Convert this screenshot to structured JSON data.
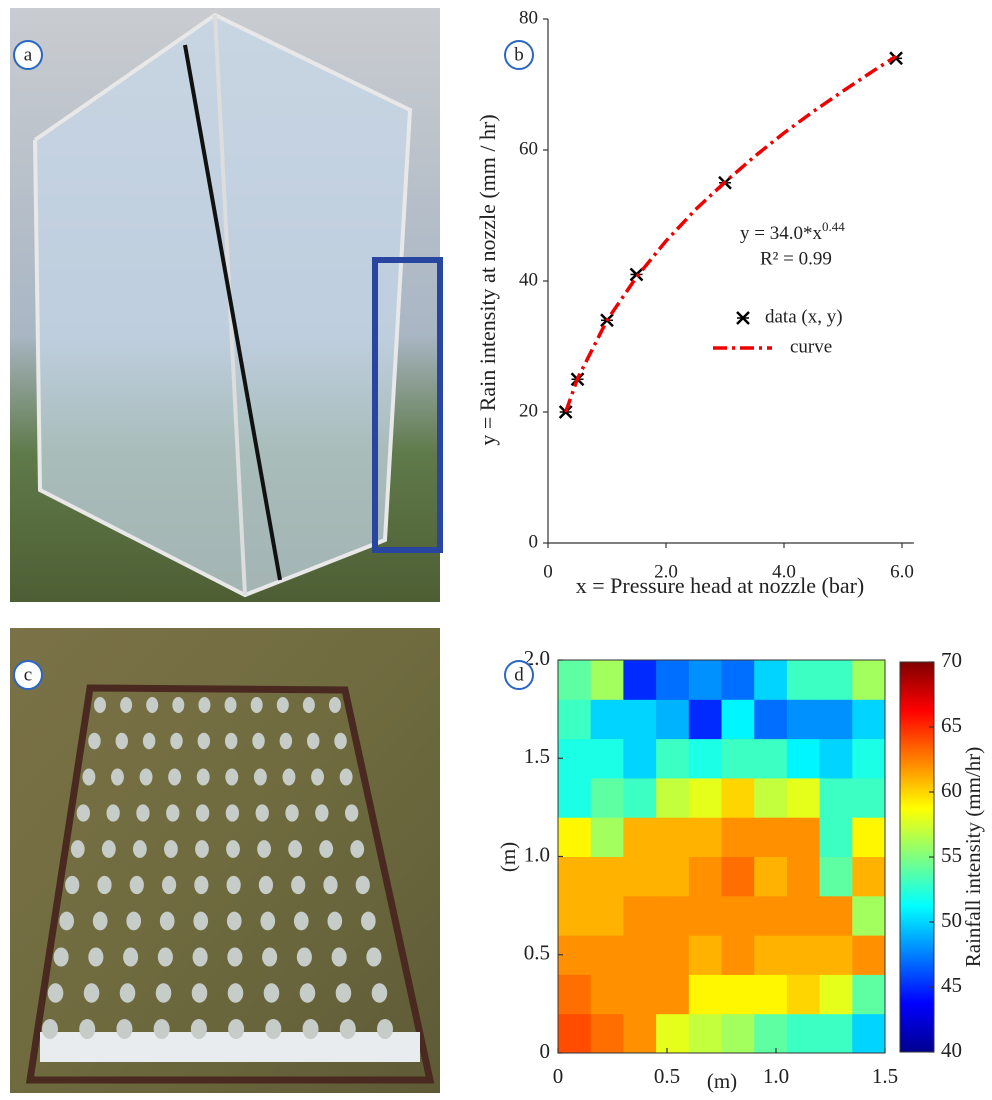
{
  "panel_labels": [
    "a",
    "b",
    "c",
    "d"
  ],
  "chart_data": [
    {
      "type": "scatter",
      "x_label": "x = Pressure head at nozzle (bar)",
      "y_label": "y = Rain intensity at nozzle (mm / hr)",
      "equation": "y = 34.0*x",
      "equation_exponent": "0.44",
      "r_squared": "R² = 0.99",
      "xlim": [
        0,
        6.2
      ],
      "xticks": [
        0,
        {
          "value": 2,
          "label": "2.0"
        },
        {
          "value": 4,
          "label": "4.0"
        },
        {
          "value": 6,
          "label": "6.0"
        }
      ],
      "ylim": [
        0,
        80
      ],
      "yticks": [
        0,
        20,
        40,
        60,
        80
      ],
      "series": [
        {
          "name": "data (x, y)",
          "type": "scatter",
          "color": "#000000",
          "x": [
            0.3,
            0.5,
            1.0,
            1.5,
            3.0,
            5.9
          ],
          "values": [
            20,
            25,
            34,
            41,
            55,
            74
          ]
        },
        {
          "name": "curve",
          "type": "line",
          "color": "#ee0000",
          "x": [
            0.3,
            0.5,
            1.0,
            1.5,
            2.0,
            2.5,
            3.0,
            3.5,
            4.0,
            4.5,
            5.0,
            5.5,
            5.9
          ],
          "values": [
            20.0,
            25.1,
            34.0,
            40.6,
            46.1,
            50.9,
            55.1,
            59.0,
            62.6,
            65.9,
            69.0,
            72.0,
            74.3
          ]
        }
      ]
    },
    {
      "type": "heatmap",
      "x_label": "(m)",
      "y_label": "(m)",
      "colorbar_label": "Rainfall intensity (mm/hr)",
      "colormap": "jet",
      "xlim": [
        0,
        1.5
      ],
      "xticks": [
        0,
        0.5,
        {
          "value": 1,
          "label": "1.0"
        },
        1.5
      ],
      "ylim": [
        0,
        2
      ],
      "yticks": [
        0,
        0.5,
        {
          "value": 1,
          "label": "1.0"
        },
        1.5,
        {
          "value": 2,
          "label": "2.0"
        }
      ],
      "clim": [
        40,
        70
      ],
      "cticks": [
        40,
        45,
        50,
        55,
        60,
        65,
        70
      ],
      "z": [
        [
          64,
          63,
          62,
          58,
          57,
          56,
          54,
          53,
          53,
          50
        ],
        [
          63,
          62,
          62,
          62,
          59,
          59,
          59,
          60,
          58,
          54
        ],
        [
          62,
          62,
          62,
          62,
          61,
          62,
          61,
          61,
          61,
          62
        ],
        [
          61,
          61,
          62,
          62,
          62,
          62,
          62,
          62,
          62,
          56
        ],
        [
          61,
          61,
          61,
          61,
          62,
          63,
          61,
          62,
          54,
          61
        ],
        [
          59,
          56,
          61,
          61,
          61,
          62,
          62,
          62,
          53,
          59
        ],
        [
          52,
          54,
          53,
          57,
          58,
          60,
          57,
          58,
          53,
          53
        ],
        [
          52,
          52,
          50,
          53,
          52,
          53,
          53,
          51,
          50,
          52
        ],
        [
          53,
          50,
          50,
          49,
          45,
          51,
          47,
          48,
          48,
          50
        ],
        [
          54,
          56,
          45,
          47,
          48,
          47,
          50,
          53,
          53,
          56
        ]
      ]
    }
  ]
}
